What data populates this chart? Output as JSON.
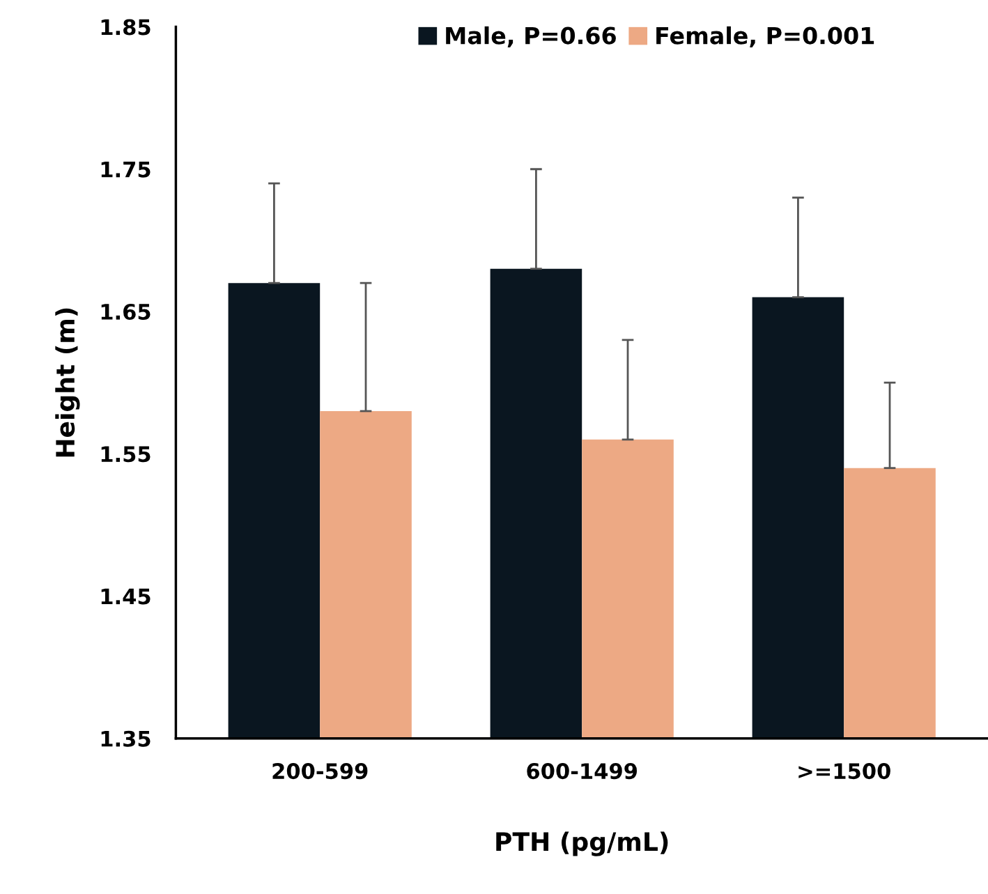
{
  "chart_data": {
    "type": "bar",
    "xlabel": "PTH (pg/mL)",
    "ylabel": "Height (m)",
    "categories": [
      "200-599",
      "600-1499",
      ">=1500"
    ],
    "series": [
      {
        "name": "Male, P=0.66",
        "color": "#0a1620",
        "values": [
          1.67,
          1.68,
          1.66
        ],
        "errors": [
          [
            1.67,
            1.74
          ],
          [
            1.68,
            1.75
          ],
          [
            1.66,
            1.73
          ]
        ]
      },
      {
        "name": "Female, P=0.001",
        "color": "#eda984",
        "values": [
          1.58,
          1.56,
          1.54
        ],
        "errors": [
          [
            1.58,
            1.67
          ],
          [
            1.56,
            1.63
          ],
          [
            1.54,
            1.6
          ]
        ]
      }
    ],
    "ylim": [
      1.35,
      1.85
    ],
    "yticks": [
      1.35,
      1.45,
      1.55,
      1.65,
      1.75,
      1.85
    ],
    "grid": false,
    "legend": "top"
  }
}
